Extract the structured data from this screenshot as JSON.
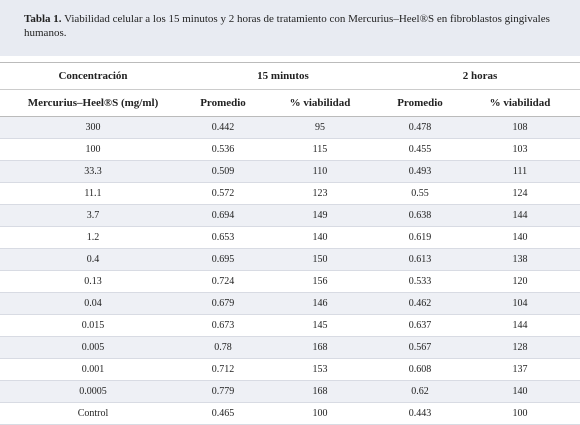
{
  "caption": {
    "label": "Tabla 1.",
    "text": "Viabilidad celular a los 15 minutos y 2 horas de tratamiento con Mercurius–Heel®S en fibroblastos gingivales humanos."
  },
  "table": {
    "header_row1": [
      "Concentración",
      "15 minutos",
      "2 horas"
    ],
    "header_row2": [
      "Mercurius–Heel®S (mg/ml)",
      "Promedio",
      "% viabilidad",
      "Promedio",
      "% viabilidad"
    ],
    "rows": [
      [
        "300",
        "0.442",
        "95",
        "0.478",
        "108"
      ],
      [
        "100",
        "0.536",
        "115",
        "0.455",
        "103"
      ],
      [
        "33.3",
        "0.509",
        "110",
        "0.493",
        "111"
      ],
      [
        "11.1",
        "0.572",
        "123",
        "0.55",
        "124"
      ],
      [
        "3.7",
        "0.694",
        "149",
        "0.638",
        "144"
      ],
      [
        "1.2",
        "0.653",
        "140",
        "0.619",
        "140"
      ],
      [
        "0.4",
        "0.695",
        "150",
        "0.613",
        "138"
      ],
      [
        "0.13",
        "0.724",
        "156",
        "0.533",
        "120"
      ],
      [
        "0.04",
        "0.679",
        "146",
        "0.462",
        "104"
      ],
      [
        "0.015",
        "0.673",
        "145",
        "0.637",
        "144"
      ],
      [
        "0.005",
        "0.78",
        "168",
        "0.567",
        "128"
      ],
      [
        "0.001",
        "0.712",
        "153",
        "0.608",
        "137"
      ],
      [
        "0.0005",
        "0.779",
        "168",
        "0.62",
        "140"
      ],
      [
        "Control",
        "0.465",
        "100",
        "0.443",
        "100"
      ]
    ]
  }
}
